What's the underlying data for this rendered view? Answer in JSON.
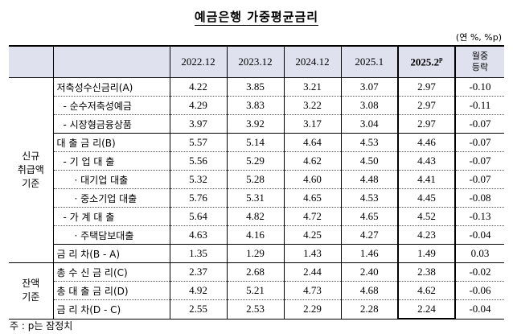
{
  "title": "예금은행 가중평균금리",
  "unit": "(연 %, %p)",
  "columns": [
    "2022.12",
    "2023.12",
    "2024.12",
    "2025.1",
    "2025.2",
    "p",
    "월중",
    "등락"
  ],
  "sections": [
    {
      "label": [
        "신규",
        "취급액",
        "기준"
      ]
    },
    {
      "label": [
        "잔액",
        "기준"
      ]
    }
  ],
  "rows": [
    {
      "label": "저축성수신금리(A)",
      "values": [
        "4.22",
        "3.85",
        "3.21",
        "3.07",
        "2.97",
        "-0.10"
      ]
    },
    {
      "label": "- 순수저축성예금",
      "values": [
        "4.29",
        "3.83",
        "3.22",
        "3.08",
        "2.97",
        "-0.11"
      ]
    },
    {
      "label": "- 시장형금융상품",
      "values": [
        "3.97",
        "3.92",
        "3.17",
        "3.04",
        "2.97",
        "-0.07"
      ]
    },
    {
      "label": "대 출 금 리(B)",
      "values": [
        "5.57",
        "5.14",
        "4.64",
        "4.53",
        "4.46",
        "-0.07"
      ]
    },
    {
      "label": "- 기 업 대 출",
      "values": [
        "5.56",
        "5.29",
        "4.62",
        "4.50",
        "4.43",
        "-0.07"
      ]
    },
    {
      "label": "· 대기업 대출",
      "values": [
        "5.32",
        "5.28",
        "4.60",
        "4.48",
        "4.41",
        "-0.07"
      ]
    },
    {
      "label": "· 중소기업 대출",
      "values": [
        "5.76",
        "5.31",
        "4.65",
        "4.53",
        "4.45",
        "-0.08"
      ]
    },
    {
      "label": "- 가 계 대 출",
      "values": [
        "5.64",
        "4.82",
        "4.72",
        "4.65",
        "4.52",
        "-0.13"
      ]
    },
    {
      "label": "· 주택담보대출",
      "values": [
        "4.63",
        "4.16",
        "4.25",
        "4.27",
        "4.23",
        "-0.04"
      ]
    },
    {
      "label": "금 리 차(B - A)",
      "values": [
        "1.35",
        "1.29",
        "1.43",
        "1.46",
        "1.49",
        "0.03"
      ]
    },
    {
      "label": "총 수 신 금 리(C)",
      "values": [
        "2.37",
        "2.68",
        "2.44",
        "2.40",
        "2.38",
        "-0.02"
      ]
    },
    {
      "label": "총 대 출 금 리(D)",
      "values": [
        "4.92",
        "5.21",
        "4.73",
        "4.68",
        "4.62",
        "-0.06"
      ]
    },
    {
      "label": "금 리 차(D - C)",
      "values": [
        "2.55",
        "2.53",
        "2.29",
        "2.28",
        "2.24",
        "-0.04"
      ]
    }
  ],
  "note": "주 : p는 잠정치",
  "colors": {
    "header_bg": "#dfe2ee",
    "line_solid": "#000000",
    "line_dotted": "#555555"
  }
}
